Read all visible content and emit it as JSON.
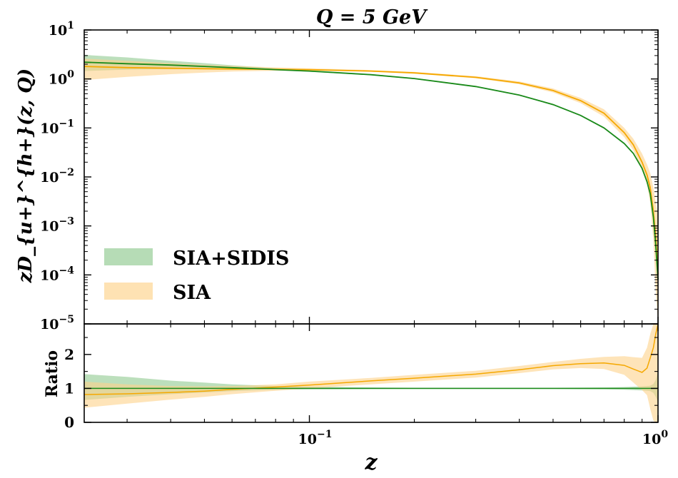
{
  "chart_data": [
    {
      "type": "line",
      "panel": "main",
      "title": "Q = 5 GeV",
      "ylabel": "zD_{u+}^{h+}(z, Q)",
      "xscale": "log",
      "yscale": "log",
      "xlim": [
        0.0226,
        1.0
      ],
      "ylim": [
        1e-05,
        10
      ],
      "ytick_labels": [
        {
          "base": "10",
          "exp": "1",
          "value": 10
        },
        {
          "base": "10",
          "exp": "0",
          "value": 1
        },
        {
          "base": "10",
          "exp": "−1",
          "value": 0.1
        },
        {
          "base": "10",
          "exp": "−2",
          "value": 0.01
        },
        {
          "base": "10",
          "exp": "−3",
          "value": 0.001
        },
        {
          "base": "10",
          "exp": "−4",
          "value": 0.0001
        },
        {
          "base": "10",
          "exp": "−5",
          "value": 1e-05
        }
      ],
      "legend_position": "lower-left",
      "series": [
        {
          "name": "SIA+SIDIS",
          "color": "#1a8a1a",
          "fill": "#8fc98f",
          "x": [
            0.0226,
            0.03,
            0.04,
            0.05,
            0.06,
            0.08,
            0.1,
            0.15,
            0.2,
            0.3,
            0.4,
            0.5,
            0.6,
            0.7,
            0.8,
            0.85,
            0.9,
            0.93,
            0.95,
            0.97,
            0.985,
            1.0
          ],
          "y": [
            2.2,
            2.05,
            1.92,
            1.8,
            1.7,
            1.55,
            1.45,
            1.22,
            1.02,
            0.7,
            0.47,
            0.3,
            0.18,
            0.1,
            0.048,
            0.03,
            0.015,
            0.008,
            0.0045,
            0.0015,
            0.0004,
            8e-05
          ],
          "lower": [
            1.45,
            1.55,
            1.6,
            1.6,
            1.58,
            1.5,
            1.4,
            1.19,
            0.99,
            0.68,
            0.46,
            0.29,
            0.175,
            0.097,
            0.046,
            0.029,
            0.0145,
            0.0076,
            0.0042,
            0.0013,
            0.0003,
            5e-05
          ],
          "upper": [
            3.1,
            2.75,
            2.35,
            2.1,
            1.9,
            1.65,
            1.52,
            1.26,
            1.05,
            0.72,
            0.48,
            0.31,
            0.185,
            0.103,
            0.05,
            0.031,
            0.0158,
            0.0085,
            0.0049,
            0.0017,
            0.0005,
            0.00012
          ]
        },
        {
          "name": "SIA",
          "color": "#f5a800",
          "fill": "#fed28a",
          "x": [
            0.0226,
            0.03,
            0.04,
            0.05,
            0.06,
            0.08,
            0.1,
            0.15,
            0.2,
            0.3,
            0.4,
            0.5,
            0.6,
            0.7,
            0.8,
            0.85,
            0.9,
            0.93,
            0.95,
            0.97,
            0.985,
            1.0
          ],
          "y": [
            1.8,
            1.7,
            1.65,
            1.62,
            1.6,
            1.57,
            1.55,
            1.45,
            1.33,
            1.08,
            0.83,
            0.58,
            0.36,
            0.2,
            0.08,
            0.045,
            0.02,
            0.011,
            0.006,
            0.002,
            0.0006,
            0.0001
          ],
          "lower": [
            0.95,
            1.1,
            1.25,
            1.35,
            1.42,
            1.47,
            1.48,
            1.4,
            1.28,
            1.03,
            0.78,
            0.53,
            0.32,
            0.17,
            0.065,
            0.035,
            0.014,
            0.007,
            0.003,
            0.0005,
            5e-05,
            1e-05
          ],
          "upper": [
            2.6,
            2.35,
            2.1,
            1.95,
            1.85,
            1.72,
            1.65,
            1.52,
            1.39,
            1.14,
            0.89,
            0.64,
            0.41,
            0.24,
            0.1,
            0.06,
            0.03,
            0.018,
            0.012,
            0.006,
            0.003,
            0.0015
          ]
        }
      ]
    },
    {
      "type": "line",
      "panel": "ratio",
      "ylabel": "Ratio",
      "xlabel": "z",
      "xscale": "log",
      "xlim": [
        0.0226,
        1.0
      ],
      "ylim": [
        0,
        2.9
      ],
      "ytick_labels": [
        {
          "text": "0",
          "value": 0
        },
        {
          "text": "1",
          "value": 1
        },
        {
          "text": "2",
          "value": 2
        }
      ],
      "xtick_labels": [
        {
          "base": "10",
          "exp": "−1",
          "value": 0.1
        },
        {
          "base": "10",
          "exp": "0",
          "value": 1
        }
      ],
      "series": [
        {
          "name": "SIA+SIDIS",
          "color": "#1a8a1a",
          "fill": "#8fc98f",
          "x": [
            0.0226,
            0.03,
            0.04,
            0.05,
            0.06,
            0.08,
            0.1,
            0.15,
            0.2,
            0.3,
            0.4,
            0.5,
            0.6,
            0.7,
            0.8,
            0.85,
            0.9,
            0.93,
            0.95,
            0.97,
            0.985,
            1.0
          ],
          "y": [
            1,
            1,
            1,
            1,
            1,
            1,
            1,
            1,
            1,
            1,
            1,
            1,
            1,
            1,
            1,
            1,
            1,
            1,
            1,
            1,
            1,
            1
          ],
          "lower": [
            0.66,
            0.75,
            0.83,
            0.88,
            0.92,
            0.96,
            0.97,
            0.98,
            0.98,
            0.98,
            0.98,
            0.98,
            0.975,
            0.97,
            0.96,
            0.95,
            0.94,
            0.93,
            0.92,
            0.87,
            0.75,
            0.6
          ],
          "upper": [
            1.42,
            1.34,
            1.23,
            1.17,
            1.12,
            1.07,
            1.05,
            1.03,
            1.02,
            1.02,
            1.02,
            1.02,
            1.025,
            1.03,
            1.04,
            1.05,
            1.06,
            1.07,
            1.08,
            1.13,
            1.25,
            1.5
          ]
        },
        {
          "name": "SIA",
          "color": "#f5a800",
          "fill": "#fed28a",
          "x": [
            0.0226,
            0.03,
            0.04,
            0.05,
            0.06,
            0.08,
            0.1,
            0.15,
            0.2,
            0.3,
            0.4,
            0.5,
            0.6,
            0.7,
            0.8,
            0.85,
            0.9,
            0.93,
            0.95,
            0.97,
            0.985,
            1.0
          ],
          "y": [
            0.82,
            0.84,
            0.88,
            0.92,
            0.97,
            1.04,
            1.1,
            1.22,
            1.3,
            1.42,
            1.55,
            1.67,
            1.73,
            1.75,
            1.68,
            1.57,
            1.47,
            1.6,
            1.9,
            2.2,
            2.6,
            2.9
          ],
          "lower": [
            0.43,
            0.55,
            0.67,
            0.75,
            0.83,
            0.93,
            1.0,
            1.12,
            1.2,
            1.32,
            1.45,
            1.56,
            1.6,
            1.57,
            1.4,
            1.17,
            0.95,
            0.8,
            0.4,
            0.05,
            0,
            0
          ],
          "upper": [
            1.2,
            1.12,
            1.07,
            1.06,
            1.07,
            1.12,
            1.2,
            1.31,
            1.4,
            1.52,
            1.66,
            1.78,
            1.87,
            1.93,
            1.95,
            1.92,
            1.9,
            2.2,
            2.6,
            2.9,
            2.9,
            2.9
          ]
        }
      ]
    }
  ]
}
